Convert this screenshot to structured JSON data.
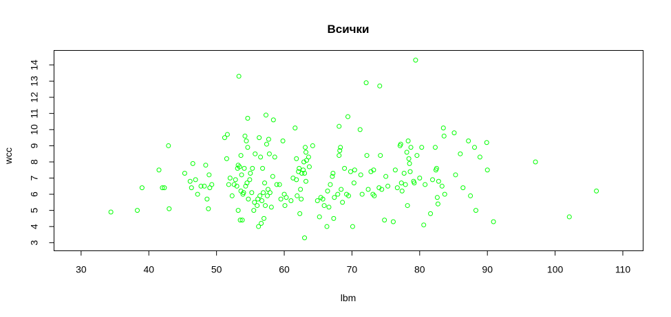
{
  "chart_data": {
    "type": "scatter",
    "title": "Всички",
    "xlabel": "lbm",
    "ylabel": "wcc",
    "xlim": [
      26,
      113
    ],
    "ylim": [
      2.5,
      14.9
    ],
    "xticks": [
      30,
      40,
      50,
      60,
      70,
      80,
      90,
      100,
      110
    ],
    "yticks": [
      3,
      4,
      5,
      6,
      7,
      8,
      9,
      10,
      11,
      12,
      13,
      14
    ],
    "grid": false,
    "legend": "none",
    "colors": {
      "points": "#00ff00",
      "axes": "#000000",
      "background": "#ffffff"
    },
    "marker": "open-circle",
    "points": [
      [
        34.4,
        4.9
      ],
      [
        38.3,
        5.0
      ],
      [
        39.0,
        6.4
      ],
      [
        41.5,
        7.5
      ],
      [
        42.0,
        6.4
      ],
      [
        42.3,
        6.4
      ],
      [
        42.9,
        9.0
      ],
      [
        43.0,
        5.1
      ],
      [
        45.3,
        7.3
      ],
      [
        46.1,
        6.8
      ],
      [
        46.3,
        6.4
      ],
      [
        46.5,
        7.9
      ],
      [
        46.9,
        6.9
      ],
      [
        47.2,
        6.0
      ],
      [
        47.7,
        6.5
      ],
      [
        48.2,
        6.5
      ],
      [
        48.4,
        7.8
      ],
      [
        48.6,
        5.7
      ],
      [
        48.8,
        5.1
      ],
      [
        48.9,
        7.2
      ],
      [
        49.0,
        6.4
      ],
      [
        49.3,
        6.6
      ],
      [
        51.2,
        9.5
      ],
      [
        51.5,
        8.2
      ],
      [
        51.6,
        9.7
      ],
      [
        51.8,
        6.6
      ],
      [
        52.0,
        7.0
      ],
      [
        52.3,
        5.9
      ],
      [
        52.6,
        6.6
      ],
      [
        52.8,
        6.9
      ],
      [
        53.0,
        6.5
      ],
      [
        53.1,
        7.6
      ],
      [
        53.2,
        7.8
      ],
      [
        53.2,
        5.0
      ],
      [
        53.3,
        13.3
      ],
      [
        53.4,
        7.7
      ],
      [
        53.5,
        4.4
      ],
      [
        53.6,
        8.4
      ],
      [
        53.6,
        6.2
      ],
      [
        53.7,
        7.2
      ],
      [
        53.8,
        4.4
      ],
      [
        53.9,
        6.0
      ],
      [
        54.0,
        6.1
      ],
      [
        54.1,
        7.6
      ],
      [
        54.2,
        9.6
      ],
      [
        54.3,
        6.5
      ],
      [
        54.4,
        9.3
      ],
      [
        54.5,
        6.7
      ],
      [
        54.6,
        10.7
      ],
      [
        54.6,
        8.9
      ],
      [
        54.7,
        5.7
      ],
      [
        54.9,
        6.9
      ],
      [
        55.0,
        7.3
      ],
      [
        55.2,
        6.1
      ],
      [
        55.3,
        7.6
      ],
      [
        55.5,
        5.0
      ],
      [
        55.6,
        5.5
      ],
      [
        55.7,
        8.5
      ],
      [
        56.0,
        5.3
      ],
      [
        56.1,
        5.7
      ],
      [
        56.2,
        4.0
      ],
      [
        56.3,
        9.5
      ],
      [
        56.4,
        5.9
      ],
      [
        56.5,
        8.3
      ],
      [
        56.6,
        4.2
      ],
      [
        56.7,
        5.6
      ],
      [
        56.8,
        7.6
      ],
      [
        56.9,
        6.1
      ],
      [
        57.0,
        4.5
      ],
      [
        57.1,
        6.7
      ],
      [
        57.2,
        5.3
      ],
      [
        57.3,
        10.9
      ],
      [
        57.4,
        9.1
      ],
      [
        57.5,
        5.9
      ],
      [
        57.6,
        6.3
      ],
      [
        57.7,
        9.4
      ],
      [
        57.8,
        8.5
      ],
      [
        57.9,
        6.1
      ],
      [
        58.1,
        5.2
      ],
      [
        58.3,
        7.1
      ],
      [
        58.4,
        10.6
      ],
      [
        58.6,
        8.3
      ],
      [
        58.9,
        6.6
      ],
      [
        59.3,
        6.6
      ],
      [
        59.5,
        5.7
      ],
      [
        59.8,
        9.3
      ],
      [
        60.0,
        6.0
      ],
      [
        60.1,
        5.3
      ],
      [
        60.3,
        5.8
      ],
      [
        61.0,
        5.6
      ],
      [
        61.3,
        7.0
      ],
      [
        61.6,
        10.1
      ],
      [
        61.8,
        6.9
      ],
      [
        61.8,
        8.2
      ],
      [
        61.9,
        5.9
      ],
      [
        62.1,
        7.4
      ],
      [
        62.2,
        7.6
      ],
      [
        62.3,
        4.8
      ],
      [
        62.4,
        6.3
      ],
      [
        62.5,
        5.7
      ],
      [
        62.6,
        7.3
      ],
      [
        62.8,
        7.5
      ],
      [
        62.9,
        8.0
      ],
      [
        63.0,
        3.3
      ],
      [
        63.0,
        7.3
      ],
      [
        63.1,
        8.9
      ],
      [
        63.2,
        8.6
      ],
      [
        63.2,
        6.8
      ],
      [
        63.3,
        8.1
      ],
      [
        63.6,
        8.3
      ],
      [
        63.7,
        7.7
      ],
      [
        64.2,
        9.0
      ],
      [
        64.9,
        5.6
      ],
      [
        65.2,
        4.6
      ],
      [
        65.4,
        5.8
      ],
      [
        65.7,
        5.7
      ],
      [
        65.9,
        5.3
      ],
      [
        66.3,
        4.0
      ],
      [
        66.4,
        6.2
      ],
      [
        66.6,
        5.2
      ],
      [
        66.8,
        6.6
      ],
      [
        67.1,
        7.1
      ],
      [
        67.2,
        7.3
      ],
      [
        67.3,
        4.5
      ],
      [
        67.4,
        5.8
      ],
      [
        67.9,
        6.0
      ],
      [
        68.1,
        10.2
      ],
      [
        68.1,
        8.4
      ],
      [
        68.2,
        8.7
      ],
      [
        68.3,
        8.9
      ],
      [
        68.4,
        6.3
      ],
      [
        68.6,
        5.5
      ],
      [
        68.9,
        7.6
      ],
      [
        69.2,
        6.0
      ],
      [
        69.4,
        10.8
      ],
      [
        69.5,
        5.9
      ],
      [
        69.8,
        7.4
      ],
      [
        70.1,
        4.0
      ],
      [
        70.3,
        6.7
      ],
      [
        70.4,
        7.5
      ],
      [
        71.2,
        10.0
      ],
      [
        71.3,
        7.2
      ],
      [
        71.5,
        6.0
      ],
      [
        72.1,
        12.9
      ],
      [
        72.2,
        8.4
      ],
      [
        72.4,
        6.3
      ],
      [
        72.8,
        7.4
      ],
      [
        73.1,
        6.0
      ],
      [
        73.2,
        7.5
      ],
      [
        73.3,
        5.9
      ],
      [
        74.0,
        6.4
      ],
      [
        74.1,
        12.7
      ],
      [
        74.2,
        8.4
      ],
      [
        74.4,
        6.3
      ],
      [
        74.8,
        4.4
      ],
      [
        75.0,
        7.1
      ],
      [
        75.3,
        6.5
      ],
      [
        76.1,
        4.3
      ],
      [
        76.4,
        7.5
      ],
      [
        76.7,
        6.4
      ],
      [
        77.1,
        9.0
      ],
      [
        77.2,
        9.1
      ],
      [
        77.3,
        6.7
      ],
      [
        77.4,
        6.2
      ],
      [
        77.7,
        7.3
      ],
      [
        77.9,
        6.6
      ],
      [
        78.1,
        8.6
      ],
      [
        78.2,
        5.3
      ],
      [
        78.3,
        9.3
      ],
      [
        78.4,
        8.2
      ],
      [
        78.5,
        7.9
      ],
      [
        78.6,
        7.4
      ],
      [
        78.7,
        8.9
      ],
      [
        79.1,
        6.8
      ],
      [
        79.2,
        6.7
      ],
      [
        79.4,
        14.3
      ],
      [
        79.6,
        8.4
      ],
      [
        80.0,
        7.0
      ],
      [
        80.3,
        8.9
      ],
      [
        80.6,
        4.1
      ],
      [
        80.8,
        6.6
      ],
      [
        81.6,
        4.8
      ],
      [
        81.9,
        6.9
      ],
      [
        82.3,
        8.9
      ],
      [
        82.4,
        7.5
      ],
      [
        82.5,
        7.6
      ],
      [
        82.6,
        5.8
      ],
      [
        82.7,
        5.4
      ],
      [
        82.8,
        6.8
      ],
      [
        83.3,
        6.5
      ],
      [
        83.5,
        10.1
      ],
      [
        83.6,
        9.6
      ],
      [
        83.7,
        6.0
      ],
      [
        85.1,
        9.8
      ],
      [
        85.3,
        7.2
      ],
      [
        86.0,
        8.5
      ],
      [
        86.4,
        6.4
      ],
      [
        87.2,
        9.3
      ],
      [
        87.5,
        5.9
      ],
      [
        88.1,
        8.9
      ],
      [
        88.3,
        5.0
      ],
      [
        88.9,
        8.3
      ],
      [
        89.9,
        9.2
      ],
      [
        90.0,
        7.5
      ],
      [
        90.9,
        4.3
      ],
      [
        97.1,
        8.0
      ],
      [
        102.1,
        4.6
      ],
      [
        106.1,
        6.2
      ]
    ]
  }
}
